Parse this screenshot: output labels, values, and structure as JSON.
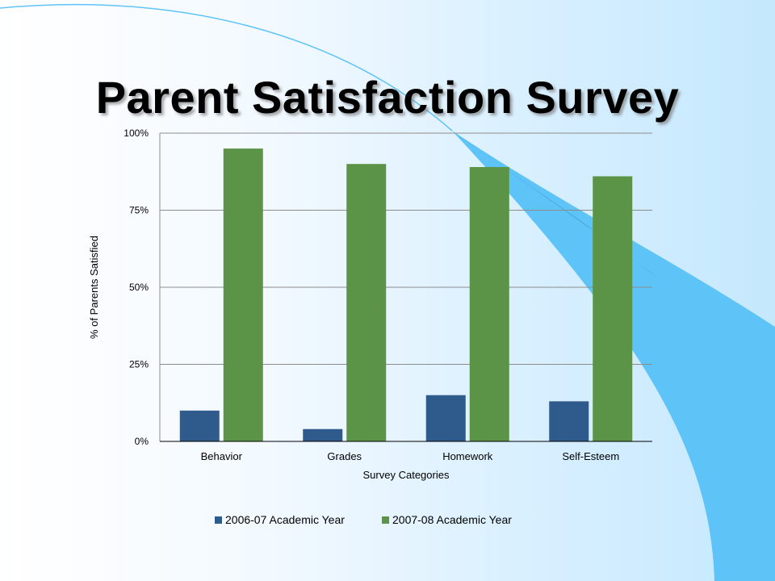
{
  "slide": {
    "title": "Parent Satisfaction Survey"
  },
  "colors": {
    "series_2006": "#2e5a8c",
    "series_2007": "#5b9446",
    "gridline": "#8c8c8c",
    "swoosh_dark": "#2f79b6",
    "swoosh_light": "#5ec4f7"
  },
  "chart_data": {
    "type": "bar",
    "title": "",
    "xlabel": "Survey Categories",
    "ylabel": "% of Parents Satisfied",
    "ylim": [
      0,
      100
    ],
    "yticks": [
      0,
      25,
      50,
      75,
      100
    ],
    "ytick_labels": [
      "0%",
      "25%",
      "50%",
      "75%",
      "100%"
    ],
    "categories": [
      "Behavior",
      "Grades",
      "Homework",
      "Self-Esteem"
    ],
    "series": [
      {
        "name": "2006-07 Academic Year",
        "values": [
          10,
          4,
          15,
          13
        ]
      },
      {
        "name": "2007-08 Academic Year",
        "values": [
          95,
          90,
          89,
          86
        ]
      }
    ],
    "grid": true,
    "legend": "bottom"
  }
}
